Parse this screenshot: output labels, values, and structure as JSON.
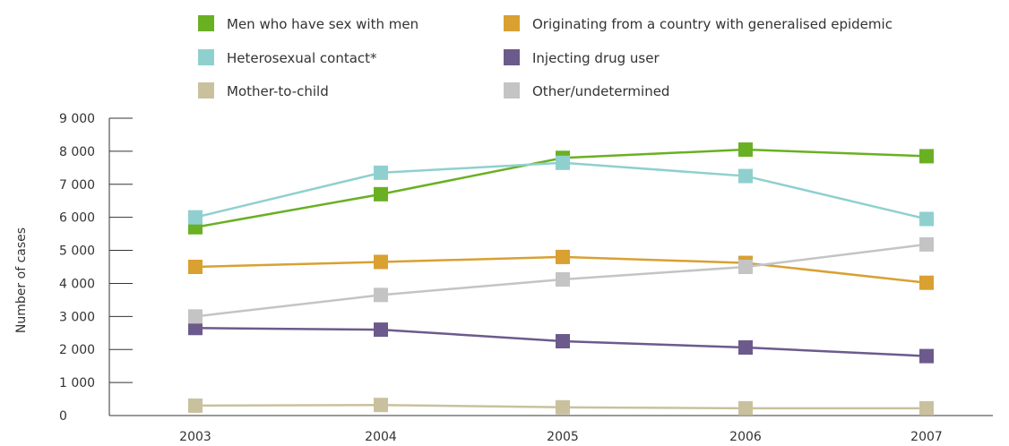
{
  "chart_data": {
    "type": "line",
    "title": "",
    "xlabel": "",
    "ylabel": "Number of cases",
    "x": [
      "2003",
      "2004",
      "2005",
      "2006",
      "2007"
    ],
    "ylim": [
      0,
      9000
    ],
    "yticks": [
      0,
      1000,
      2000,
      3000,
      4000,
      5000,
      6000,
      7000,
      8000,
      9000
    ],
    "ytick_labels": [
      "0",
      "1 000",
      "2 000",
      "3 000",
      "4 000",
      "5 000",
      "6 000",
      "7 000",
      "8 000",
      "9 000"
    ],
    "grid": false,
    "legend_position": "top",
    "series": [
      {
        "name": "Men who have sex with men",
        "color": "#6ab023",
        "values": [
          5700,
          6700,
          7800,
          8050,
          7850
        ]
      },
      {
        "name": "Originating from a country with generalised epidemic",
        "color": "#d9a032",
        "values": [
          4500,
          4650,
          4800,
          4620,
          4020
        ]
      },
      {
        "name": "Heterosexual contact*",
        "color": "#8fd0cf",
        "values": [
          6000,
          7350,
          7650,
          7250,
          5950
        ]
      },
      {
        "name": "Injecting drug user",
        "color": "#6d5a8c",
        "values": [
          2650,
          2600,
          2250,
          2060,
          1800
        ]
      },
      {
        "name": "Mother-to-child",
        "color": "#c9c19e",
        "values": [
          300,
          320,
          250,
          220,
          220
        ]
      },
      {
        "name": "Other/undetermined",
        "color": "#c4c4c4",
        "values": [
          3000,
          3650,
          4120,
          4500,
          5180
        ]
      }
    ]
  }
}
